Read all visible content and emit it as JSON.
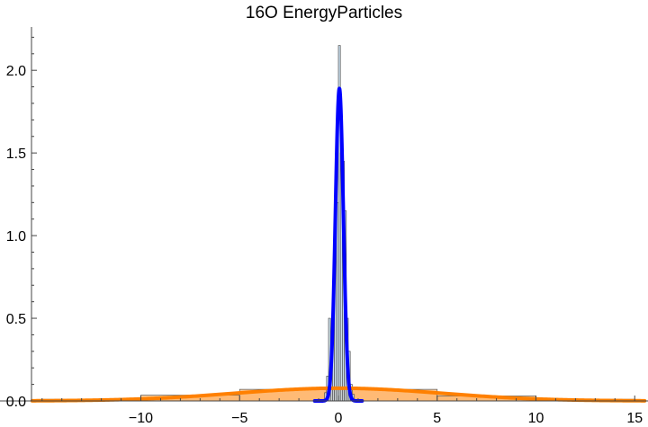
{
  "chart_data": {
    "type": "histogram",
    "title": "16O EnergyParticles",
    "xlabel": "",
    "ylabel": "",
    "xlim": [
      -15.5,
      15.5
    ],
    "ylim": [
      0,
      2.25
    ],
    "x_ticks": [
      -10,
      -5,
      0,
      5,
      10,
      15
    ],
    "x_tick_labels": [
      "−10",
      "−5",
      "0",
      "5",
      "10",
      "15"
    ],
    "y_ticks": [
      0.0,
      0.5,
      1.0,
      1.5,
      2.0
    ],
    "y_tick_labels": [
      "0.0",
      "0.5",
      "1.0",
      "1.5",
      "2.0"
    ],
    "grid": false,
    "series": [
      {
        "kind": "histogram",
        "color": "#ffa64d",
        "stroke": "#555555",
        "bins": [
          {
            "x0": -15,
            "x1": -10,
            "y": 0.01
          },
          {
            "x0": -10,
            "x1": -5,
            "y": 0.035
          },
          {
            "x0": -5,
            "x1": 0,
            "y": 0.07
          },
          {
            "x0": 0,
            "x1": 5,
            "y": 0.07
          },
          {
            "x0": 5,
            "x1": 10,
            "y": 0.03
          },
          {
            "x0": 10,
            "x1": 15,
            "y": 0.01
          }
        ]
      },
      {
        "kind": "histogram",
        "color": "#bcd5ea",
        "stroke": "#555555",
        "bins": [
          {
            "x0": -0.7,
            "x1": -0.6,
            "y": 0.05
          },
          {
            "x0": -0.6,
            "x1": -0.5,
            "y": 0.15
          },
          {
            "x0": -0.5,
            "x1": -0.4,
            "y": 0.5
          },
          {
            "x0": -0.4,
            "x1": -0.3,
            "y": 0.28
          },
          {
            "x0": -0.3,
            "x1": -0.2,
            "y": 0.6
          },
          {
            "x0": -0.2,
            "x1": -0.1,
            "y": 0.85
          },
          {
            "x0": -0.1,
            "x1": 0.0,
            "y": 1.2
          },
          {
            "x0": 0.0,
            "x1": 0.1,
            "y": 2.15
          },
          {
            "x0": 0.1,
            "x1": 0.2,
            "y": 1.5
          },
          {
            "x0": 0.2,
            "x1": 0.3,
            "y": 1.45
          },
          {
            "x0": 0.3,
            "x1": 0.4,
            "y": 1.15
          },
          {
            "x0": 0.4,
            "x1": 0.5,
            "y": 0.5
          },
          {
            "x0": 0.5,
            "x1": 0.6,
            "y": 0.3
          },
          {
            "x0": 0.6,
            "x1": 0.7,
            "y": 0.1
          },
          {
            "x0": 0.7,
            "x1": 0.8,
            "y": 0.04
          }
        ]
      },
      {
        "kind": "curve",
        "shape": "gaussian",
        "color": "#ff8000",
        "filled": true,
        "mean": 0.0,
        "sigma": 5.2,
        "peak": 0.077,
        "x_range": [
          -15.5,
          15.5
        ]
      },
      {
        "kind": "curve",
        "shape": "gaussian",
        "color": "#0000ff",
        "filled": false,
        "mean": 0.05,
        "sigma": 0.2,
        "peak": 1.89,
        "x_range": [
          -1.2,
          1.2
        ]
      }
    ]
  }
}
